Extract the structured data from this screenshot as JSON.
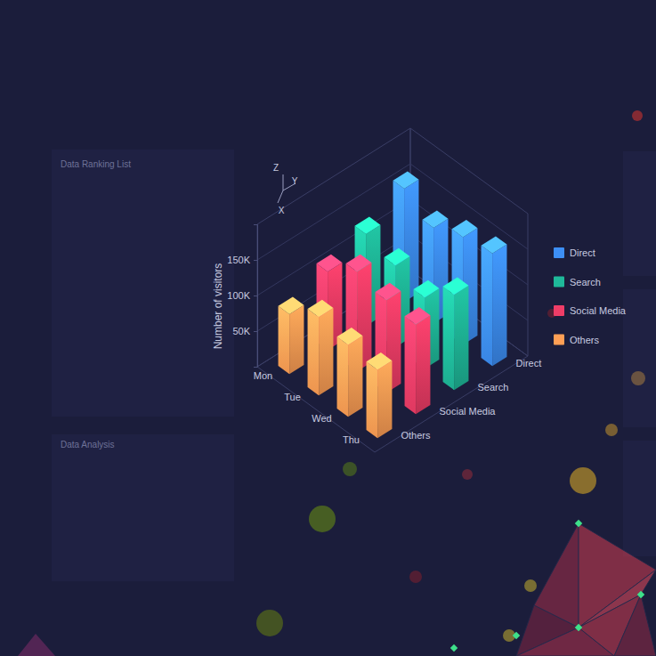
{
  "panels": [
    {
      "title": "Data Ranking List"
    },
    {
      "title": "Data Analysis"
    }
  ],
  "chart_data": {
    "type": "bar3d",
    "y_label": "Number of visitors",
    "axis_names": {
      "x": "X",
      "y": "Y",
      "z": "Z"
    },
    "categories": [
      "Mon",
      "Tue",
      "Wed",
      "Thu"
    ],
    "series": [
      {
        "name": "Direct",
        "color": "#3d8ff5",
        "values": [
          159000,
          134000,
          151000,
          158000
        ]
      },
      {
        "name": "Search",
        "color": "#1fb99a",
        "values": [
          129000,
          115000,
          100000,
          134000
        ]
      },
      {
        "name": "Social Media",
        "color": "#ef3d67",
        "values": [
          110000,
          140000,
          130000,
          126000
        ]
      },
      {
        "name": "Others",
        "color": "#ff9f55",
        "values": [
          84000,
          110000,
          101000,
          96000
        ]
      }
    ],
    "ylim": [
      0,
      200000
    ],
    "yticks": [
      {
        "value": 50000,
        "label": "50K"
      },
      {
        "value": 100000,
        "label": "100K"
      },
      {
        "value": 150000,
        "label": "150K"
      }
    ],
    "grid": true,
    "legend": "right"
  }
}
